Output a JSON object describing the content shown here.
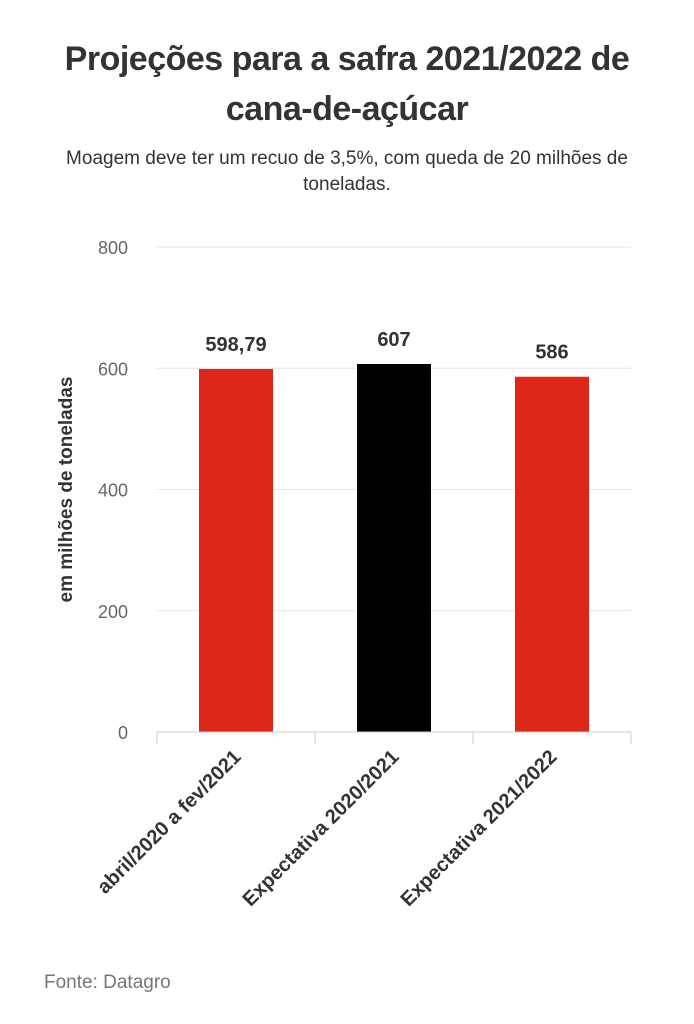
{
  "title": "Projeções para a safra 2021/2022 de cana-de-açúcar",
  "subtitle": "Moagem deve ter um recuo de 3,5%, com queda de 20 milhões de toneladas.",
  "source": "Fonte: Datagro",
  "chart_data": {
    "type": "bar",
    "categories": [
      "abril/2020 a fev/2021",
      "Expectativa 2020/2021",
      "Expectativa 2021/2022"
    ],
    "values": [
      598.79,
      607,
      586
    ],
    "value_labels": [
      "598,79",
      "607",
      "586"
    ],
    "colors": [
      "#dc2719",
      "#000000",
      "#dc2719"
    ],
    "ylabel": "em milhões de toneladas",
    "xlabel": "",
    "ylim": [
      0,
      800
    ],
    "yticks": [
      0,
      200,
      400,
      600,
      800
    ],
    "grid": true,
    "legend": "none"
  }
}
